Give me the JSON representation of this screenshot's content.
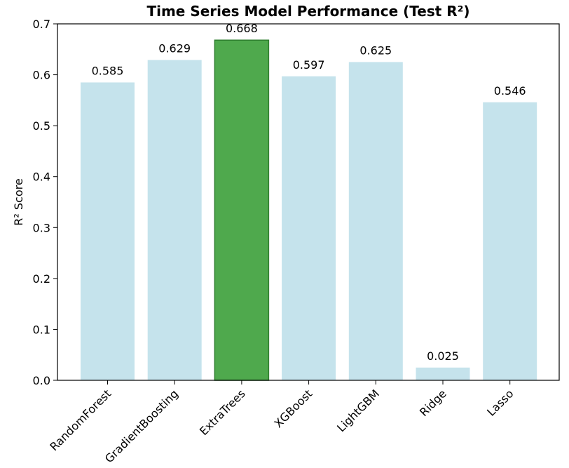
{
  "chart_data": {
    "type": "bar",
    "title": "Time Series Model Performance (Test R²)",
    "xlabel": "",
    "ylabel": "R² Score",
    "categories": [
      "RandomForest",
      "GradientBoosting",
      "ExtraTrees",
      "XGBoost",
      "LightGBM",
      "Ridge",
      "Lasso"
    ],
    "values": [
      0.585,
      0.629,
      0.668,
      0.597,
      0.625,
      0.025,
      0.546
    ],
    "value_labels": [
      "0.585",
      "0.629",
      "0.668",
      "0.597",
      "0.625",
      "0.025",
      "0.546"
    ],
    "ylim": [
      0,
      0.7
    ],
    "yticks": [
      0.0,
      0.1,
      0.2,
      0.3,
      0.4,
      0.5,
      0.6,
      0.7
    ],
    "ytick_labels": [
      "0.0",
      "0.1",
      "0.2",
      "0.3",
      "0.4",
      "0.5",
      "0.6",
      "0.7"
    ],
    "highlight_index": 2,
    "colors": {
      "bar": "#c5e3ec",
      "highlight": "#4fa94d",
      "highlight_edge": "#2f7f2f"
    },
    "grid": false,
    "legend": false
  }
}
